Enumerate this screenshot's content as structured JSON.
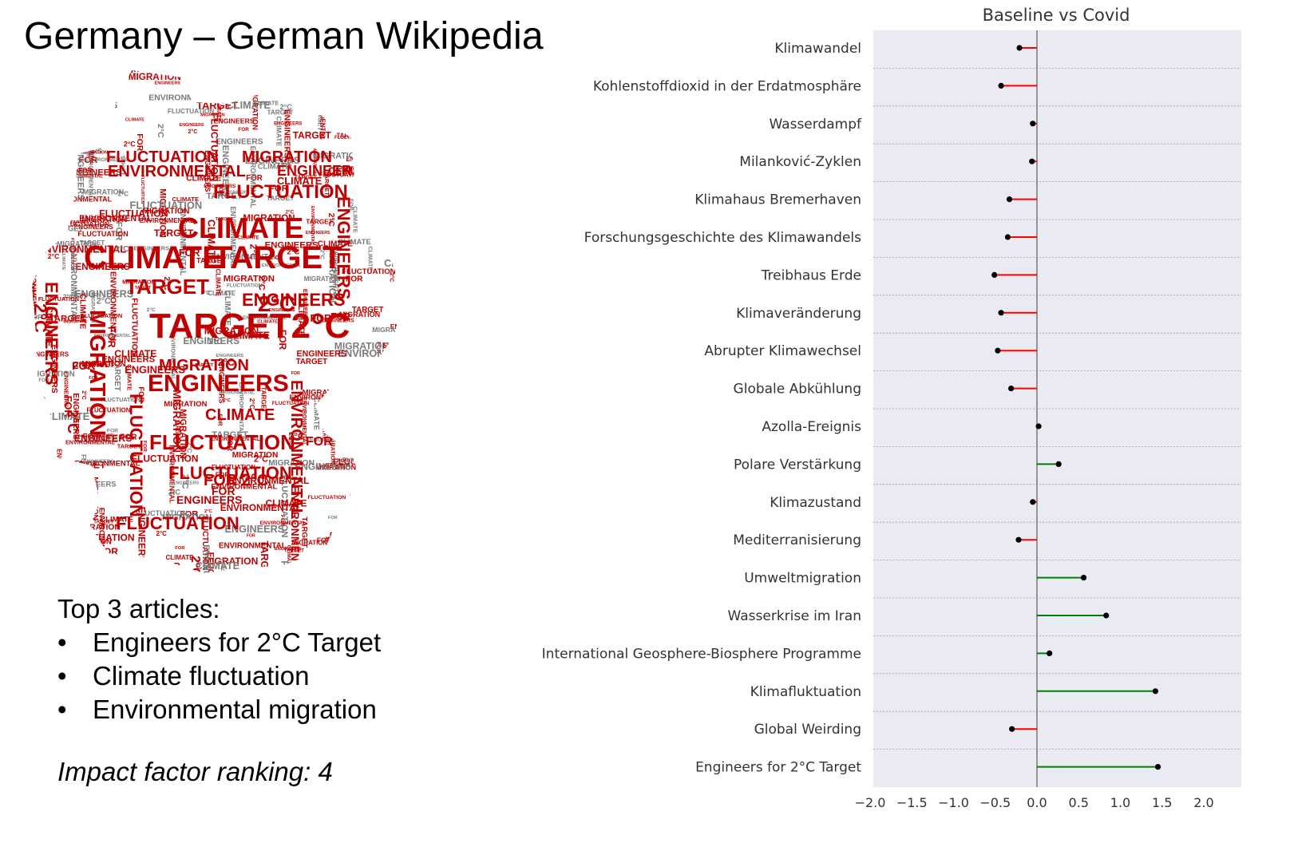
{
  "slide": {
    "title": "Germany – German Wikipedia",
    "top_articles_heading": "Top 3 articles:",
    "top_articles": [
      "Engineers for 2°C Target",
      "Climate fluctuation",
      "Environmental migration"
    ],
    "ranking_label": "Impact  factor ranking: 4"
  },
  "wordcloud": {
    "color": "#c00000",
    "words": [
      {
        "text": "TARGET2°C"
      },
      {
        "text": "CLIMATE"
      },
      {
        "text": "TARGET"
      },
      {
        "text": "CLIMATE"
      },
      {
        "text": "MIGRATION"
      },
      {
        "text": "FLUCTUATION"
      },
      {
        "text": "ENGINEERS"
      },
      {
        "text": "FLUCTUATION"
      },
      {
        "text": "ENVIRONMENTAL"
      },
      {
        "text": "ENGINEERS"
      },
      {
        "text": "FLUCTUATION"
      },
      {
        "text": "MIGRATION"
      },
      {
        "text": "FLUCTUATION"
      },
      {
        "text": "ENGINEERS"
      },
      {
        "text": "ENVIRONMENTAL"
      },
      {
        "text": "TARGET"
      },
      {
        "text": "ENGINEERS"
      },
      {
        "text": "MIGRATION"
      },
      {
        "text": "ENGINEERS"
      },
      {
        "text": "FLUCTUATION"
      },
      {
        "text": "FLUCTUATION"
      },
      {
        "text": "2°C"
      },
      {
        "text": "ENVIRONMENTAL"
      },
      {
        "text": "ENGINEERS"
      },
      {
        "text": "2°C"
      },
      {
        "text": "FOR 2°C"
      },
      {
        "text": "CLIMATE"
      },
      {
        "text": "MIGRATION"
      },
      {
        "text": "FOR"
      },
      {
        "text": "FOR"
      },
      {
        "text": "2°C"
      },
      {
        "text": "FOR"
      },
      {
        "text": "2°C"
      }
    ]
  },
  "chart_data": {
    "type": "lollipop",
    "title": "Baseline vs Covid",
    "categories": [
      "Klimawandel",
      "Kohlenstoffdioxid in der Erdatmosphäre",
      "Wasserdampf",
      "Milanković-Zyklen",
      "Klimahaus Bremerhaven",
      "Forschungsgeschichte des Klimawandels",
      "Treibhaus Erde",
      "Klimaveränderung",
      "Abrupter Klimawechsel",
      "Globale Abkühlung",
      "Azolla-Ereignis",
      "Polare Verstärkung",
      "Klimazustand",
      "Mediterranisierung",
      "Umweltmigration",
      "Wasserkrise im Iran",
      "International Geosphere-Biosphere Programme",
      "Klimafluktuation",
      "Global Weirding",
      "Engineers for 2°C Target"
    ],
    "values": [
      -0.21,
      -0.43,
      -0.05,
      -0.06,
      -0.33,
      -0.35,
      -0.51,
      -0.43,
      -0.47,
      -0.31,
      0.02,
      0.26,
      -0.05,
      -0.22,
      0.56,
      0.83,
      0.15,
      1.42,
      -0.3,
      1.45
    ],
    "xlim": [
      -2.0,
      2.5
    ],
    "xticks": [
      "−2.0",
      "−1.5",
      "−1.0",
      "−0.5",
      "0.0",
      "0.5",
      "1.0",
      "1.5",
      "2.0"
    ],
    "xtick_values": [
      -2.0,
      -1.5,
      -1.0,
      -0.5,
      0.0,
      0.5,
      1.0,
      1.5,
      2.0
    ],
    "grid": "horizontal dashed",
    "colors": {
      "negative": "#ff0000",
      "positive": "#008000",
      "marker": "#000000",
      "background": "#eaeaf2",
      "zero_line": "#777777"
    }
  }
}
